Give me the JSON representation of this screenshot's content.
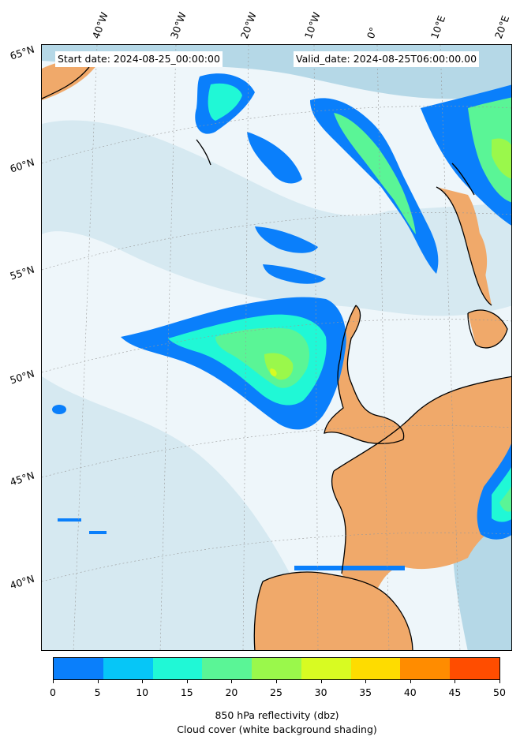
{
  "header": {
    "start_date": "Start date: 2024-08-25_00:00:00",
    "valid_date": "Valid_date: 2024-08-25T06:00:00.00"
  },
  "longitude_labels": [
    "40°W",
    "30°W",
    "20°W",
    "10°W",
    "0°",
    "10°E",
    "20°E"
  ],
  "latitude_labels": [
    "65°N",
    "60°N",
    "55°N",
    "50°N",
    "45°N",
    "40°N"
  ],
  "colorbar": {
    "ticks": [
      "0",
      "5",
      "10",
      "15",
      "20",
      "25",
      "30",
      "35",
      "40",
      "45",
      "50"
    ],
    "colors": [
      "#0a7ffb",
      "#06c6f7",
      "#20f8d6",
      "#5af596",
      "#9af84b",
      "#d8fb22",
      "#fedc00",
      "#ff8c00",
      "#ff4d00"
    ],
    "label_line1": "850 hPa reflectivity (dbz)",
    "label_line2": "Cloud cover (white background shading)"
  },
  "map_colors": {
    "land_clear": "#f0a96a",
    "cloud_light": "#d6e9f1",
    "cloud_mid": "#b5d8e7",
    "coastline": "#000000"
  }
}
